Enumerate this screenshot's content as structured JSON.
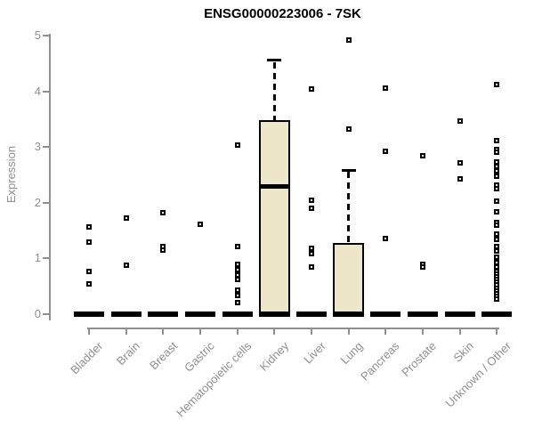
{
  "title": {
    "text": "ENSG00000223006 - 7SK"
  },
  "colors": {
    "background": "#FFFFFF",
    "box_fill": "#EDE6C9",
    "box_border": "#000000",
    "median": "#000000",
    "axis": "#8F8F8F",
    "tick_label": "#8F8F8F",
    "title": "#000000",
    "outlier_border": "#000000",
    "outlier_fill": "#FFFFFF"
  },
  "chart_data": {
    "type": "boxplot",
    "title": "ENSG00000223006 - 7SK",
    "xlabel": "",
    "ylabel": "Expression",
    "ylim": [
      0,
      5
    ],
    "y_ticks": [
      0,
      1,
      2,
      3,
      4,
      5
    ],
    "grid": false,
    "legend": false,
    "categories": [
      "Bladder",
      "Brain",
      "Breast",
      "Gastric",
      "Hematopoietic cells",
      "Kidney",
      "Liver",
      "Lung",
      "Pancreas",
      "Prostate",
      "Skin",
      "Unknown / Other"
    ],
    "series": [
      {
        "category": "Bladder",
        "q1": 0,
        "median": 0,
        "q3": 0,
        "whisker_low": 0,
        "whisker_high": 0,
        "outliers": [
          1.57,
          1.3,
          0.77,
          0.54
        ]
      },
      {
        "category": "Brain",
        "q1": 0,
        "median": 0,
        "q3": 0,
        "whisker_low": 0,
        "whisker_high": 0,
        "outliers": [
          1.73,
          0.88
        ]
      },
      {
        "category": "Breast",
        "q1": 0,
        "median": 0,
        "q3": 0,
        "whisker_low": 0,
        "whisker_high": 0,
        "outliers": [
          1.82,
          1.21,
          1.15
        ]
      },
      {
        "category": "Gastric",
        "q1": 0,
        "median": 0,
        "q3": 0,
        "whisker_low": 0,
        "whisker_high": 0,
        "outliers": [
          1.62
        ]
      },
      {
        "category": "Hematopoietic cells",
        "q1": 0,
        "median": 0,
        "q3": 0,
        "whisker_low": 0,
        "whisker_high": 0,
        "outliers": [
          3.03,
          1.22,
          0.9,
          0.8,
          0.71,
          0.62,
          0.43,
          0.33,
          0.21
        ]
      },
      {
        "category": "Kidney",
        "q1": 0,
        "median": 2.3,
        "q3": 3.48,
        "whisker_low": 0,
        "whisker_high": 4.56,
        "outliers": []
      },
      {
        "category": "Liver",
        "q1": 0,
        "median": 0,
        "q3": 0,
        "whisker_low": 0,
        "whisker_high": 0,
        "outliers": [
          4.04,
          2.04,
          1.9,
          1.18,
          1.09,
          0.85
        ]
      },
      {
        "category": "Lung",
        "q1": 0,
        "median": 0,
        "q3": 1.28,
        "whisker_low": 0,
        "whisker_high": 2.58,
        "outliers": [
          4.92,
          3.33
        ]
      },
      {
        "category": "Pancreas",
        "q1": 0,
        "median": 0,
        "q3": 0,
        "whisker_low": 0,
        "whisker_high": 0,
        "outliers": [
          4.06,
          2.93,
          1.36
        ]
      },
      {
        "category": "Prostate",
        "q1": 0,
        "median": 0,
        "q3": 0,
        "whisker_low": 0,
        "whisker_high": 0,
        "outliers": [
          2.84,
          0.9,
          0.84
        ]
      },
      {
        "category": "Skin",
        "q1": 0,
        "median": 0,
        "q3": 0,
        "whisker_low": 0,
        "whisker_high": 0,
        "outliers": [
          3.47,
          2.72,
          2.43
        ]
      },
      {
        "category": "Unknown / Other",
        "q1": 0,
        "median": 0,
        "q3": 0,
        "whisker_low": 0,
        "whisker_high": 0,
        "outliers": [
          4.12,
          3.12,
          2.95,
          2.9,
          2.73,
          2.65,
          2.57,
          2.48,
          2.32,
          2.25,
          2.03,
          1.84,
          1.65,
          1.59,
          1.44,
          1.34,
          1.21,
          1.13,
          1.02,
          0.93,
          0.85,
          0.77,
          0.72,
          0.67,
          0.62,
          0.57,
          0.52,
          0.47,
          0.42,
          0.37,
          0.32,
          0.27
        ]
      }
    ]
  }
}
